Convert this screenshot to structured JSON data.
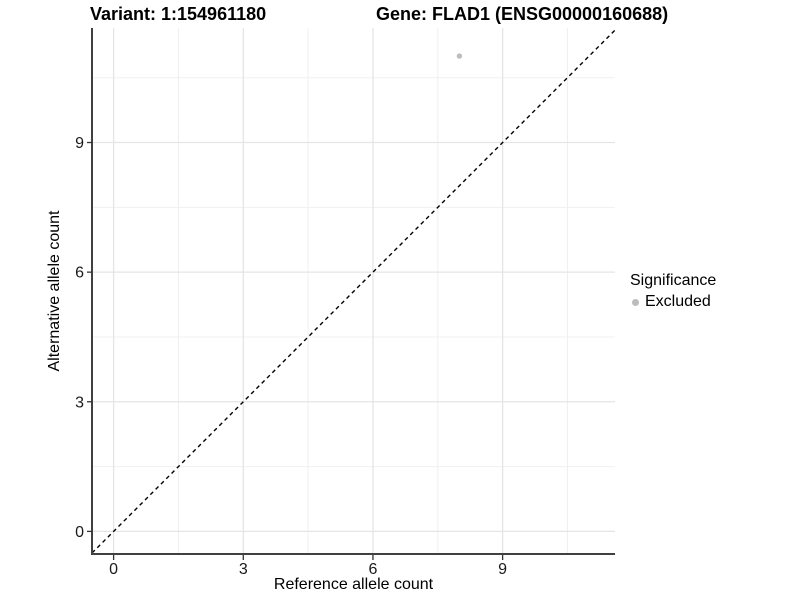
{
  "title": {
    "left": "Variant: 1:154961180",
    "right": "Gene: FLAD1 (ENSG00000160688)"
  },
  "axes": {
    "x_label": "Reference allele count",
    "y_label": "Alternative allele count"
  },
  "legend": {
    "title": "Significance",
    "items": [
      {
        "label": "Excluded",
        "color": "#bdbdbd"
      }
    ]
  },
  "colors": {
    "background": "#ffffff",
    "axis_line": "#404040",
    "tick_mark": "#333333",
    "tick_label": "#1a1a1a",
    "grid_major": "#e5e5e5",
    "grid_minor": "#f0f0f0",
    "reference_line": "#000000",
    "point": "#bdbdbd"
  },
  "chart_data": {
    "type": "scatter",
    "title": "Variant: 1:154961180   Gene: FLAD1 (ENSG00000160688)",
    "xlabel": "Reference allele count",
    "ylabel": "Alternative allele count",
    "xlim": [
      -0.5,
      11.6
    ],
    "ylim": [
      -0.5,
      11.65
    ],
    "x_ticks": [
      0,
      3,
      6,
      9
    ],
    "y_ticks": [
      0,
      3,
      6,
      9
    ],
    "x_minor_ticks": [
      1.5,
      4.5,
      7.5,
      10.5
    ],
    "y_minor_ticks": [
      1.5,
      4.5,
      7.5,
      10.5
    ],
    "grid": true,
    "legend_position": "right",
    "legend_title": "Significance",
    "series": [
      {
        "name": "Excluded",
        "color": "#bdbdbd",
        "points": [
          {
            "x": 8,
            "y": 11
          }
        ]
      }
    ],
    "reference_line": {
      "type": "identity",
      "style": "dashed",
      "color": "#000000"
    }
  }
}
